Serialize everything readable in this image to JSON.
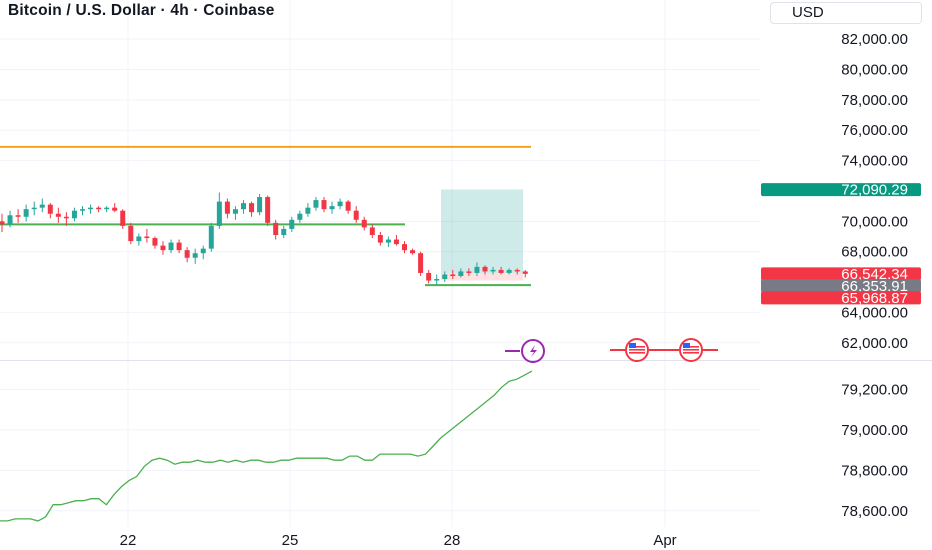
{
  "header": {
    "title": "Bitcoin / U.S. Dollar · 4h · Coinbase",
    "currency": "USD"
  },
  "colors": {
    "up": "#26a69a",
    "down": "#f23645",
    "resistance": "#f7a21b",
    "support": "#4caf50",
    "target_zone": "#26a69a",
    "indicator": "#4caf50",
    "last_price": "#089981",
    "mid_price": "#787b86",
    "event_purple": "#9c27b0"
  },
  "chart_data": [
    {
      "type": "candlestick",
      "title": "Bitcoin / U.S. Dollar · 4h · Coinbase",
      "x_ticks": [
        "22",
        "25",
        "28",
        "Apr"
      ],
      "y_ticks": [
        "82,000.00",
        "80,000.00",
        "78,000.00",
        "76,000.00",
        "74,000.00",
        "70,000.00",
        "68,000.00",
        "64,000.00",
        "62,000.00"
      ],
      "ylim": [
        60800,
        82800
      ],
      "price_labels": [
        {
          "value": 72090.29,
          "text": "72,090.29",
          "role": "last"
        },
        {
          "value": 66542.34,
          "text": "66,542.34",
          "role": "ask"
        },
        {
          "value": 66353.91,
          "text": "66,353.91",
          "role": "mid"
        },
        {
          "value": 65968.87,
          "text": "65,968.87",
          "role": "bid"
        }
      ],
      "horizontal_lines": [
        {
          "value": 74900,
          "color": "#f7a21b"
        },
        {
          "value": 69800,
          "color": "#4caf50"
        },
        {
          "value": 65800,
          "color": "#4caf50"
        }
      ],
      "target_zone": {
        "from": 66600,
        "to": 72100
      },
      "candles": [
        [
          70000,
          70500,
          69300,
          69800
        ],
        [
          69800,
          70700,
          69600,
          70400
        ],
        [
          70400,
          70800,
          69900,
          70300
        ],
        [
          70300,
          71100,
          70000,
          70800
        ],
        [
          70800,
          71300,
          70400,
          70900
        ],
        [
          70900,
          71500,
          70600,
          71100
        ],
        [
          71100,
          71200,
          70200,
          70500
        ],
        [
          70500,
          70900,
          69900,
          70300
        ],
        [
          70300,
          70600,
          69700,
          70200
        ],
        [
          70200,
          70900,
          70000,
          70700
        ],
        [
          70700,
          71000,
          70400,
          70800
        ],
        [
          70800,
          71100,
          70500,
          70900
        ],
        [
          70900,
          71000,
          70600,
          70800
        ],
        [
          70800,
          71000,
          70600,
          70900
        ],
        [
          70900,
          71200,
          70600,
          70700
        ],
        [
          70700,
          70800,
          69500,
          69700
        ],
        [
          69700,
          69900,
          68500,
          68700
        ],
        [
          68700,
          69200,
          68400,
          69000
        ],
        [
          69000,
          69500,
          68600,
          68900
        ],
        [
          68900,
          69000,
          68200,
          68400
        ],
        [
          68400,
          68700,
          67800,
          68100
        ],
        [
          68100,
          68800,
          67900,
          68600
        ],
        [
          68600,
          68800,
          67900,
          68100
        ],
        [
          68100,
          68300,
          67300,
          67600
        ],
        [
          67600,
          68200,
          67200,
          67900
        ],
        [
          67900,
          68400,
          67500,
          68200
        ],
        [
          68200,
          69900,
          68000,
          69700
        ],
        [
          69700,
          71900,
          69500,
          71300
        ],
        [
          71300,
          71500,
          70200,
          70500
        ],
        [
          70500,
          71000,
          70100,
          70800
        ],
        [
          70800,
          71400,
          70500,
          71200
        ],
        [
          71200,
          71300,
          70300,
          70600
        ],
        [
          70600,
          71800,
          70400,
          71600
        ],
        [
          71600,
          71700,
          69700,
          69900
        ],
        [
          69900,
          70100,
          68800,
          69100
        ],
        [
          69100,
          69700,
          68900,
          69500
        ],
        [
          69500,
          70300,
          69300,
          70100
        ],
        [
          70100,
          70700,
          69900,
          70500
        ],
        [
          70500,
          71200,
          70300,
          70900
        ],
        [
          70900,
          71600,
          70700,
          71400
        ],
        [
          71400,
          71600,
          70600,
          70800
        ],
        [
          70800,
          71300,
          70500,
          71000
        ],
        [
          71000,
          71500,
          70800,
          71300
        ],
        [
          71300,
          71400,
          70500,
          70700
        ],
        [
          70700,
          71000,
          69900,
          70100
        ],
        [
          70100,
          70300,
          69400,
          69600
        ],
        [
          69600,
          69800,
          68900,
          69100
        ],
        [
          69100,
          69300,
          68400,
          68600
        ],
        [
          68600,
          69000,
          68300,
          68800
        ],
        [
          68800,
          69100,
          68400,
          68500
        ],
        [
          68500,
          68700,
          67900,
          68100
        ],
        [
          68100,
          68200,
          67800,
          67900
        ],
        [
          67900,
          68000,
          66400,
          66600
        ],
        [
          66600,
          66800,
          65900,
          66100
        ],
        [
          66100,
          66500,
          65800,
          66200
        ],
        [
          66200,
          66700,
          66000,
          66500
        ],
        [
          66500,
          66800,
          66200,
          66400
        ],
        [
          66400,
          66900,
          66300,
          66700
        ],
        [
          66700,
          66900,
          66400,
          66600
        ],
        [
          66600,
          67300,
          66400,
          67000
        ],
        [
          67000,
          67100,
          66500,
          66700
        ],
        [
          66700,
          67000,
          66500,
          66800
        ],
        [
          66800,
          67000,
          66500,
          66600
        ],
        [
          66600,
          66900,
          66500,
          66800
        ],
        [
          66800,
          66900,
          66500,
          66700
        ],
        [
          66700,
          66800,
          66300,
          66542
        ]
      ],
      "event_icons": [
        "flash-event-icon",
        "us-flag-event-icon",
        "us-flag-event-icon"
      ]
    },
    {
      "type": "line",
      "y_ticks": [
        "79,200.00",
        "79,000.00",
        "78,800.00",
        "78,600.00"
      ],
      "ylim": [
        78520,
        79340
      ],
      "values": [
        78550,
        78550,
        78560,
        78560,
        78560,
        78550,
        78570,
        78630,
        78630,
        78640,
        78650,
        78650,
        78660,
        78660,
        78630,
        78680,
        78720,
        78750,
        78770,
        78820,
        78850,
        78860,
        78850,
        78830,
        78840,
        78840,
        78850,
        78840,
        78840,
        78850,
        78840,
        78850,
        78840,
        78850,
        78850,
        78840,
        78840,
        78850,
        78850,
        78860,
        78860,
        78860,
        78860,
        78860,
        78850,
        78850,
        78870,
        78870,
        78850,
        78850,
        78880,
        78880,
        78880,
        78880,
        78880,
        78870,
        78880,
        78920,
        78960,
        78990,
        79020,
        79050,
        79080,
        79110,
        79140,
        79170,
        79210,
        79240,
        79250,
        79270,
        79290
      ]
    }
  ]
}
